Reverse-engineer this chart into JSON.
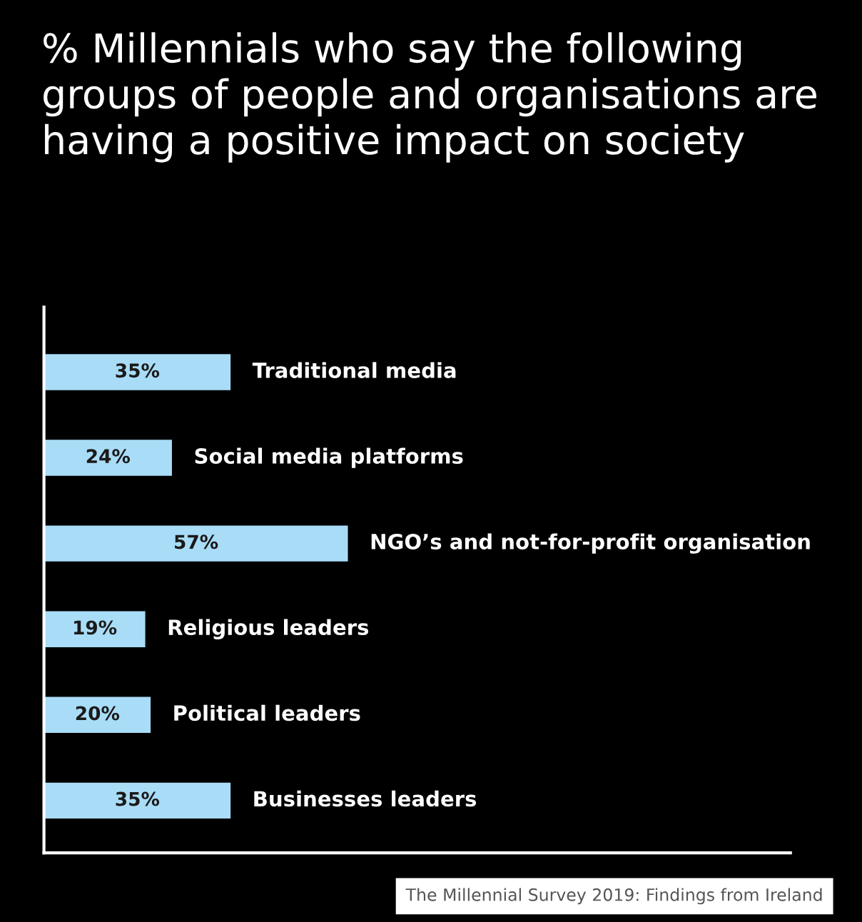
{
  "chart_data": {
    "type": "bar",
    "orientation": "horizontal",
    "title": "% Millennials who say the following groups of people and organisations are having a positive impact on society",
    "categories": [
      "Traditional media",
      "Social media platforms",
      "NGO’s and not-for-profit organisation",
      "Religious leaders",
      "Political leaders",
      "Businesses leaders"
    ],
    "values": [
      35,
      24,
      57,
      19,
      20,
      35
    ],
    "value_labels": [
      "35%",
      "24%",
      "57%",
      "19%",
      "20%",
      "35%"
    ],
    "color": "#a9dcf7",
    "xlim": [
      0,
      140
    ],
    "annotations": [
      "The Millennial Survey 2019: Findings from Ireland"
    ]
  }
}
